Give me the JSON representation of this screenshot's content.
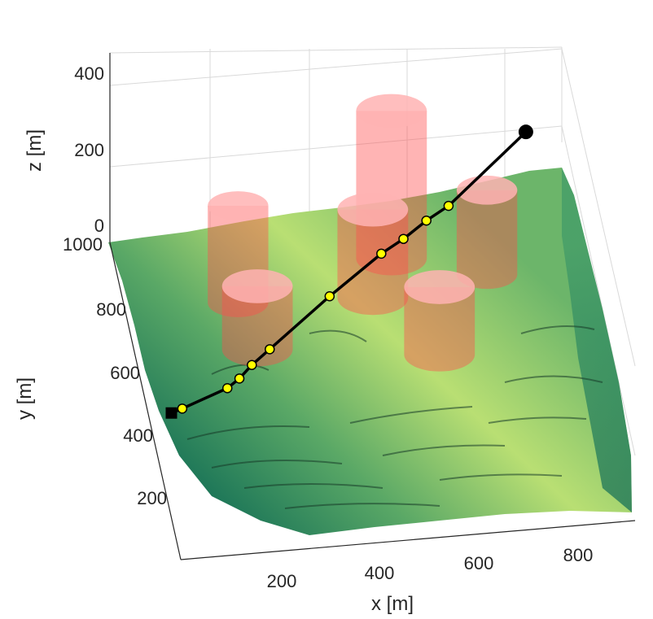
{
  "chart_data": {
    "type": "3d-surface-path",
    "title": "",
    "xlabel": "x [m]",
    "ylabel": "y [m]",
    "zlabel": "z [m]",
    "x_ticks": [
      "200",
      "400",
      "600",
      "800"
    ],
    "y_ticks": [
      "200",
      "400",
      "600",
      "800",
      "1000"
    ],
    "z_ticks": [
      "0",
      "200",
      "400"
    ],
    "xlim": [
      0,
      900
    ],
    "ylim": [
      100,
      1000
    ],
    "zlim": [
      0,
      450
    ],
    "grid": true,
    "legend": "none",
    "colors": {
      "terrain_low": "#0f6b55",
      "terrain_high": "#b9df73",
      "obstacle_fill": "#ff4d4d",
      "path_line": "#000000",
      "waypoint_fill": "#ffff00",
      "start_marker": "#000000",
      "goal_marker": "#000000"
    },
    "obstacles": [
      {
        "name": "cylinder",
        "x": 130,
        "y": 900,
        "radius": 60,
        "z_top": 230
      },
      {
        "name": "cylinder",
        "x": 190,
        "y": 760,
        "radius": 70,
        "z_top": 150
      },
      {
        "name": "cylinder",
        "x": 420,
        "y": 990,
        "radius": 70,
        "z_top": 350
      },
      {
        "name": "cylinder",
        "x": 400,
        "y": 880,
        "radius": 70,
        "z_top": 210
      },
      {
        "name": "cylinder",
        "x": 620,
        "y": 920,
        "radius": 60,
        "z_top": 200
      },
      {
        "name": "cylinder",
        "x": 560,
        "y": 700,
        "radius": 70,
        "z_top": 160
      }
    ],
    "path": {
      "start_marker": "square",
      "goal_marker": "circle",
      "x": [
        60,
        80,
        160,
        180,
        200,
        230,
        330,
        420,
        460,
        500,
        540,
        680
      ],
      "y": [
        500,
        510,
        570,
        595,
        625,
        660,
        780,
        860,
        885,
        920,
        945,
        1030
      ],
      "z": [
        80,
        80,
        70,
        70,
        75,
        80,
        95,
        120,
        130,
        140,
        150,
        240
      ]
    }
  }
}
